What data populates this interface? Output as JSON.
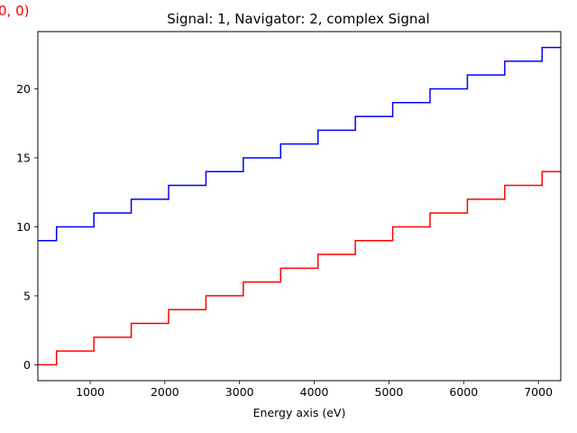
{
  "chart_data": {
    "type": "line",
    "drawstyle": "steps-post",
    "title": "Signal: 1, Navigator: 2, complex Signal",
    "corner_label": "0, 0)",
    "xlabel": "Energy axis (eV)",
    "ylabel": "",
    "xlim": [
      300,
      7300
    ],
    "ylim": [
      -1.15,
      24.15
    ],
    "xticks": [
      1000,
      2000,
      3000,
      4000,
      5000,
      6000,
      7000
    ],
    "yticks": [
      0,
      5,
      10,
      15,
      20
    ],
    "grid": false,
    "legend": "none",
    "x": [
      300,
      550,
      1050,
      1550,
      2050,
      2550,
      3050,
      3550,
      4050,
      4550,
      5050,
      5550,
      6050,
      6550,
      7050
    ],
    "x_end": 7300,
    "series": [
      {
        "color": "#0000ff",
        "values": [
          9,
          10,
          11,
          12,
          13,
          14,
          15,
          16,
          17,
          18,
          19,
          20,
          21,
          22,
          23
        ]
      },
      {
        "color": "#ff0000",
        "values": [
          0,
          1,
          2,
          3,
          4,
          5,
          6,
          7,
          8,
          9,
          10,
          11,
          12,
          13,
          14
        ]
      }
    ]
  },
  "colors": {
    "corner_label": "#ff0000",
    "axes": "#000000",
    "background": "#ffffff"
  }
}
